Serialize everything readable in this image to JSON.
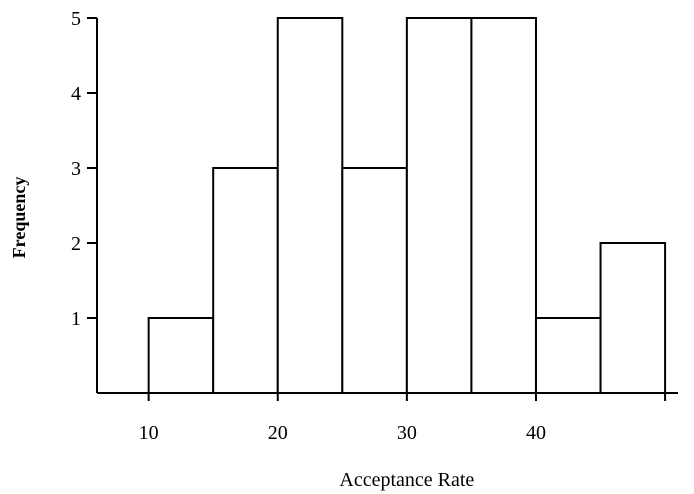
{
  "chart_data": {
    "type": "bar",
    "bins": [
      {
        "start": 10,
        "end": 15,
        "count": 1
      },
      {
        "start": 15,
        "end": 20,
        "count": 3
      },
      {
        "start": 20,
        "end": 25,
        "count": 5
      },
      {
        "start": 25,
        "end": 30,
        "count": 3
      },
      {
        "start": 30,
        "end": 35,
        "count": 5
      },
      {
        "start": 35,
        "end": 40,
        "count": 5
      },
      {
        "start": 40,
        "end": 45,
        "count": 1
      },
      {
        "start": 45,
        "end": 50,
        "count": 2
      }
    ],
    "xlabel": "Acceptance Rate",
    "ylabel": "Frequency",
    "xticks": [
      10,
      20,
      30,
      40
    ],
    "yticks": [
      1,
      2,
      3,
      4,
      5
    ],
    "xlim": [
      6,
      51
    ],
    "ylim": [
      0,
      5
    ],
    "grid": false
  }
}
